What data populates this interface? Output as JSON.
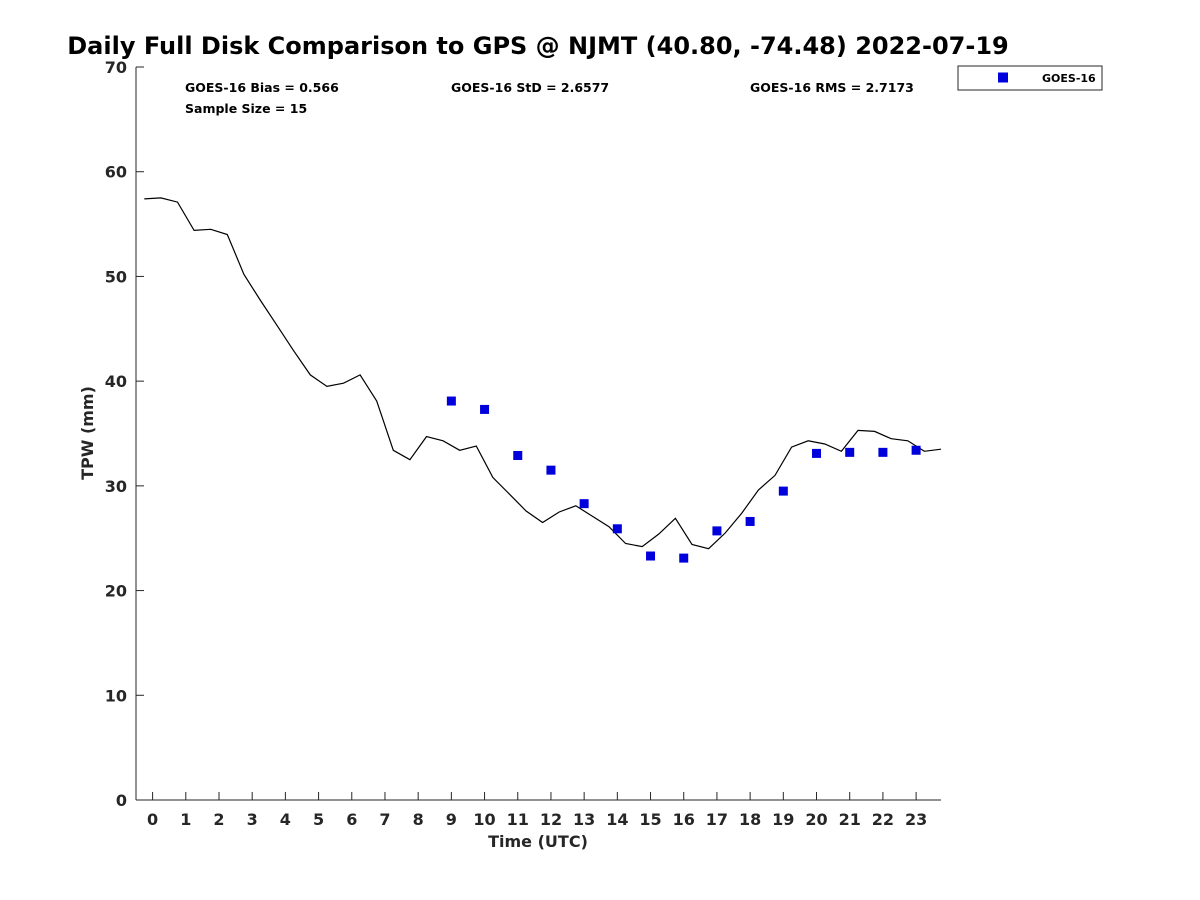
{
  "chart_data": {
    "type": "scatter",
    "title": "Daily Full Disk Comparison to GPS @ NJMT (40.80, -74.48) 2022-07-19",
    "xlabel": "Time (UTC)",
    "ylabel": "TPW (mm)",
    "xlim": [
      -0.5,
      23.75
    ],
    "ylim": [
      0,
      70
    ],
    "xticks": [
      0,
      1,
      2,
      3,
      4,
      5,
      6,
      7,
      8,
      9,
      10,
      11,
      12,
      13,
      14,
      15,
      16,
      17,
      18,
      19,
      20,
      21,
      22,
      23
    ],
    "yticks": [
      0,
      10,
      20,
      30,
      40,
      50,
      60,
      70
    ],
    "grid": false,
    "legend_position": "top-right, outside plot",
    "stats": {
      "bias": "GOES-16 Bias = 0.566",
      "std": "GOES-16 StD = 2.6577",
      "rms": "GOES-16 RMS = 2.7173",
      "sample": "Sample Size = 15"
    },
    "series": [
      {
        "name": "GOES-16",
        "kind": "scatter",
        "marker": "square",
        "color": "#0000dd",
        "x": [
          9,
          10,
          11,
          12,
          13,
          14,
          15,
          16,
          17,
          18,
          19,
          20,
          21,
          22,
          23
        ],
        "y": [
          38.1,
          37.3,
          32.9,
          31.5,
          28.3,
          25.9,
          23.3,
          23.1,
          25.7,
          26.6,
          29.5,
          33.1,
          33.2,
          33.2,
          33.4
        ]
      },
      {
        "kind": "line",
        "color": "#000000",
        "x": [
          -0.25,
          0.25,
          0.75,
          1.25,
          1.75,
          2.25,
          2.75,
          3.25,
          3.75,
          4.25,
          4.75,
          5.25,
          5.75,
          6.25,
          6.75,
          7.25,
          7.75,
          8.25,
          8.75,
          9.25,
          9.75,
          10.25,
          10.75,
          11.25,
          11.75,
          12.25,
          12.75,
          13.25,
          13.75,
          14.25,
          14.75,
          15.25,
          15.75,
          16.25,
          16.75,
          17.25,
          17.75,
          18.25,
          18.75,
          19.25,
          19.75,
          20.25,
          20.75,
          21.25,
          21.75,
          22.25,
          22.75,
          23.25,
          23.75
        ],
        "y": [
          57.4,
          57.5,
          57.1,
          54.4,
          54.5,
          54.0,
          50.2,
          47.7,
          45.3,
          42.9,
          40.6,
          39.5,
          39.8,
          40.6,
          38.1,
          33.4,
          32.5,
          34.7,
          34.3,
          33.4,
          33.8,
          30.8,
          29.2,
          27.6,
          26.5,
          27.5,
          28.1,
          27.1,
          26.1,
          24.5,
          24.2,
          25.4,
          26.9,
          24.4,
          24.0,
          25.5,
          27.4,
          29.6,
          31.0,
          33.7,
          34.3,
          34.0,
          33.3,
          35.3,
          35.2,
          34.5,
          34.3,
          33.3,
          33.5
        ]
      }
    ]
  }
}
